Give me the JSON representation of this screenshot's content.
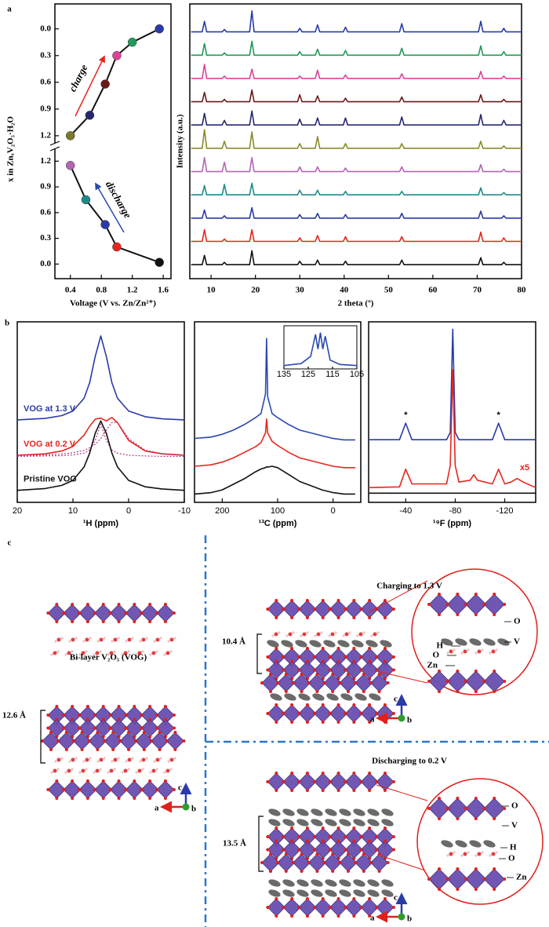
{
  "chart_data": [
    {
      "type": "scatter",
      "panel": "a",
      "xlabel": "Voltage (V vs. Zn/Zn²⁺)",
      "ylabel": "x in ZnₓV₂O₅·H₂O",
      "xlim": [
        0.2,
        1.7
      ],
      "xticks": [
        0.4,
        0.8,
        1.2,
        1.6
      ],
      "segments": [
        {
          "name": "charge",
          "ylim": [
            -0.28,
            1.28
          ],
          "yticks": [
            {
              "value": 0,
              "label": "0.0"
            },
            0.3,
            0.6,
            0.9,
            1.2
          ],
          "x": [
            0.4,
            0.65,
            0.85,
            1.0,
            1.2,
            1.55
          ],
          "values": [
            1.2,
            0.97,
            0.62,
            0.3,
            0.15,
            0.0
          ],
          "colors": [
            "#7a7a2a",
            "#26286e",
            "#6b1a1a",
            "#e0409a",
            "#1f9a5a",
            "#2a3aa8"
          ],
          "arrow_color": "#e8251c"
        },
        {
          "name": "discharge",
          "ylim": [
            1.34,
            -0.17
          ],
          "yticks": [
            1.2,
            0.9,
            0.6,
            0.3,
            {
              "value": 0,
              "label": "0.0"
            }
          ],
          "x": [
            0.4,
            0.6,
            0.85,
            1.0,
            1.55
          ],
          "values": [
            1.15,
            0.75,
            0.46,
            0.2,
            0.02
          ],
          "colors": [
            "#b565b5",
            "#1f8a8a",
            "#2a3aa8",
            "#e8251c",
            "#111111"
          ],
          "arrow_color": "#2a48b0"
        }
      ]
    },
    {
      "type": "line",
      "xlabel": "2 theta (º)",
      "ylabel": "Intensity (a.u.)",
      "xlim": [
        5.2,
        80
      ],
      "xticks": [
        10,
        20,
        30,
        40,
        50,
        60,
        70,
        80
      ],
      "ylim": [
        -0.6,
        11.2
      ],
      "x": [
        5.5,
        8,
        8.5,
        9,
        12.5,
        13,
        13.5,
        18.7,
        19.2,
        19.7,
        29.5,
        30,
        30.5,
        33.5,
        34,
        34.5,
        39.8,
        40.3,
        40.8,
        52.5,
        53,
        53.5,
        70.3,
        70.8,
        71.3,
        75.5,
        76,
        76.5,
        80
      ],
      "series": [
        {
          "color": "#111111",
          "values": [
            0,
            0,
            0.4,
            0,
            0,
            0.1,
            0,
            0,
            0.6,
            0,
            0,
            0.15,
            0,
            0,
            0.2,
            0,
            0,
            0.15,
            0,
            0,
            0.2,
            0,
            0,
            0.3,
            0,
            0,
            0.1,
            0,
            0
          ]
        },
        {
          "color": "#e8251c",
          "values": [
            1,
            1,
            1.5,
            1,
            1,
            1.1,
            1,
            1,
            1.5,
            1,
            1,
            1.15,
            1,
            1,
            1.25,
            1,
            1,
            1.2,
            1,
            1,
            1.2,
            1,
            1,
            1.4,
            1,
            1,
            1.15,
            1,
            1
          ]
        },
        {
          "color": "#2a3aa8",
          "values": [
            2,
            2,
            2.35,
            2,
            2,
            2.1,
            2,
            2,
            2.45,
            2,
            2,
            2.15,
            2,
            2,
            2.2,
            2,
            2,
            2.15,
            2,
            2,
            2.2,
            2,
            2,
            2.3,
            2,
            2,
            2.1,
            2,
            2
          ]
        },
        {
          "color": "#1f8a8a",
          "values": [
            3,
            3,
            3.4,
            3,
            3,
            3.45,
            3,
            3,
            3.5,
            3,
            3,
            3.2,
            3,
            3,
            3.2,
            3,
            3,
            3.15,
            3,
            3,
            3.15,
            3,
            3,
            3.3,
            3,
            3,
            3.1,
            3,
            3
          ]
        },
        {
          "color": "#b565b5",
          "values": [
            4,
            4,
            4.6,
            4,
            4,
            4.4,
            4,
            4,
            4.6,
            4,
            4,
            4.2,
            4,
            4,
            4.2,
            4,
            4,
            4.15,
            4,
            4,
            4.2,
            4,
            4,
            4.3,
            4,
            4,
            4.1,
            4,
            4
          ]
        },
        {
          "color": "#8a8a2a",
          "values": [
            5,
            5,
            5.8,
            5,
            5,
            5.3,
            5,
            5,
            5.7,
            5,
            5,
            5.2,
            5,
            5,
            5.5,
            5,
            5,
            5.2,
            5,
            5,
            5.2,
            5,
            5,
            5.3,
            5,
            5,
            5.1,
            5,
            5
          ]
        },
        {
          "color": "#26286e",
          "values": [
            6,
            6,
            6.5,
            6,
            6,
            6.2,
            6,
            6,
            6.6,
            6,
            6,
            6.25,
            6,
            6,
            6.3,
            6,
            6,
            6.3,
            6,
            6,
            6.35,
            6,
            6,
            6.45,
            6,
            6,
            6.2,
            6,
            6
          ]
        },
        {
          "color": "#6b1a1a",
          "values": [
            7,
            7,
            7.4,
            7,
            7,
            7.1,
            7,
            7,
            7.5,
            7,
            7,
            7.3,
            7,
            7,
            7.25,
            7,
            7,
            7.15,
            7,
            7,
            7.2,
            7,
            7,
            7.3,
            7,
            7,
            7.1,
            7,
            7
          ]
        },
        {
          "color": "#e0409a",
          "values": [
            8,
            8,
            8.6,
            8,
            8,
            8.1,
            8,
            8,
            8.4,
            8,
            8,
            8.1,
            8,
            8,
            8.35,
            8,
            8,
            8.15,
            8,
            8,
            8.2,
            8,
            8,
            8.3,
            8,
            8,
            8.1,
            8,
            8
          ]
        },
        {
          "color": "#1f9a5a",
          "values": [
            9,
            9,
            9.5,
            9,
            9,
            9.1,
            9,
            9,
            9.6,
            9,
            9,
            9.15,
            9,
            9,
            9.25,
            9,
            9,
            9.2,
            9,
            9,
            9.3,
            9,
            9,
            9.4,
            9,
            9,
            9.15,
            9,
            9
          ]
        },
        {
          "color": "#2a3aa8",
          "values": [
            10,
            10,
            10.45,
            10,
            10,
            10.1,
            10,
            10,
            10.9,
            10,
            10,
            10.15,
            10,
            10,
            10.3,
            10,
            10,
            10.2,
            10,
            10,
            10.35,
            10,
            10,
            10.45,
            10,
            10,
            10.15,
            10,
            10
          ]
        }
      ]
    },
    {
      "type": "line",
      "panel": "b",
      "xlabel": "¹H (ppm)",
      "xlim": [
        20,
        -10
      ],
      "xticks": [
        20,
        10,
        0,
        -10
      ],
      "ylim": [
        -0.3,
        4.8
      ],
      "x": [
        20,
        15,
        12,
        10,
        8,
        7,
        6,
        5,
        4,
        3,
        2,
        0,
        -3,
        -6,
        -10
      ],
      "series": [
        {
          "name": "VOG at 1.3 V",
          "color": "#2a3aa8",
          "values": [
            2.03,
            2.07,
            2.15,
            2.28,
            2.64,
            3.08,
            3.82,
            4.4,
            3.82,
            3.08,
            2.64,
            2.28,
            2.12,
            2.06,
            2.03
          ]
        },
        {
          "name": "VOG at 0.2 V",
          "color": "#e8251c",
          "values": [
            1.03,
            1.07,
            1.15,
            1.28,
            1.6,
            1.85,
            2.05,
            2.08,
            2.0,
            2.1,
            1.95,
            1.45,
            1.15,
            1.07,
            1.03
          ]
        },
        {
          "color": "#b03a8a",
          "dotted": true,
          "values": [
            1.0,
            1.01,
            1.02,
            1.04,
            1.09,
            1.18,
            1.45,
            1.9,
            1.45,
            1.18,
            1.09,
            1.03,
            1.01,
            1.0,
            1.0
          ]
        },
        {
          "color": "#b03a8a",
          "dotted": true,
          "values": [
            1.02,
            1.04,
            1.065,
            1.1,
            1.17,
            1.24,
            1.34,
            1.5,
            1.74,
            1.96,
            1.96,
            1.5,
            1.17,
            1.08,
            1.04
          ]
        },
        {
          "name": "Pristine VOG",
          "color": "#111111",
          "values": [
            0.04,
            0.09,
            0.18,
            0.32,
            0.7,
            1.09,
            1.65,
            2.0,
            1.65,
            1.09,
            0.7,
            0.32,
            0.14,
            0.08,
            0.04
          ]
        }
      ]
    },
    {
      "type": "line",
      "xlabel": "¹³C (ppm)",
      "xlim": [
        250,
        -50
      ],
      "xticks": [
        200,
        100,
        0
      ],
      "ylim": [
        -0.3,
        6.2
      ],
      "x": [
        250,
        220,
        200,
        180,
        160,
        140,
        130,
        122,
        120,
        118,
        110,
        100,
        80,
        60,
        40,
        20,
        0,
        -20,
        -40
      ],
      "series": [
        {
          "color": "#2a48b0",
          "values": [
            2.0,
            2.05,
            2.15,
            2.3,
            2.5,
            2.75,
            2.9,
            3.6,
            5.6,
            3.5,
            2.9,
            2.75,
            2.5,
            2.3,
            2.2,
            2.1,
            2.0,
            1.95,
            1.95
          ]
        },
        {
          "color": "#e8251c",
          "values": [
            1.0,
            1.05,
            1.15,
            1.3,
            1.5,
            1.7,
            1.85,
            2.2,
            2.7,
            2.2,
            1.9,
            1.75,
            1.5,
            1.3,
            1.2,
            1.1,
            1.0,
            0.95,
            0.95
          ]
        },
        {
          "color": "#111111",
          "values": [
            0.0,
            0.05,
            0.15,
            0.35,
            0.55,
            0.8,
            0.9,
            0.95,
            0.98,
            0.97,
            1.0,
            0.95,
            0.7,
            0.45,
            0.3,
            0.15,
            0.05,
            0.0,
            0.0
          ]
        }
      ],
      "inset": {
        "type": "line",
        "xlim": [
          135,
          105
        ],
        "xticks": [
          135,
          125,
          115,
          105
        ],
        "ylim": [
          0,
          1.05
        ],
        "color": "#2a48b0",
        "x": [
          135,
          128,
          124,
          122,
          121,
          120,
          119,
          118,
          116,
          112,
          105
        ],
        "values": [
          0.05,
          0.1,
          0.3,
          0.9,
          0.5,
          0.95,
          0.5,
          0.85,
          0.2,
          0.08,
          0.05
        ]
      }
    },
    {
      "type": "line",
      "xlabel": "¹⁹F (ppm)",
      "xlim": [
        -10,
        -145
      ],
      "xticks": [
        -40,
        -80,
        -120
      ],
      "ylim": [
        -0.2,
        4.7
      ],
      "x": [
        -10,
        -35,
        -40,
        -45,
        -73,
        -76,
        -78,
        -80,
        -83,
        -92,
        -95,
        -98,
        -110,
        -115,
        -120,
        -125,
        -130,
        -135,
        -145
      ],
      "series": [
        {
          "color": "#2a3aa8",
          "values": [
            1.5,
            1.5,
            1.95,
            1.5,
            1.5,
            1.7,
            4.5,
            1.7,
            1.5,
            1.5,
            1.5,
            1.5,
            1.5,
            1.95,
            1.5,
            1.5,
            1.5,
            1.5,
            1.5
          ]
        },
        {
          "color": "#e8251c",
          "values": [
            0.2,
            0.22,
            0.7,
            0.3,
            0.3,
            0.8,
            3.4,
            0.8,
            0.35,
            0.4,
            0.55,
            0.4,
            0.3,
            0.7,
            0.3,
            0.35,
            0.45,
            0.35,
            0.2
          ]
        },
        {
          "color": "#111111",
          "values": [
            0.05,
            0.05,
            0.05,
            0.05,
            0.05,
            0.05,
            0.05,
            0.05,
            0.05,
            0.05,
            0.05,
            0.05,
            0.05,
            0.05,
            0.05,
            0.05,
            0.05,
            0.05,
            0.05
          ]
        }
      ],
      "annotations": [
        {
          "text": "*",
          "x": -40,
          "y": 1.95
        },
        {
          "text": "*",
          "x": -115,
          "y": 1.95
        }
      ],
      "scale_label": "x5"
    }
  ],
  "panel_c": {
    "label": "c",
    "left": {
      "title": "Bi-layer V₂O₅ (VOG)",
      "spacing": "12.6 Å",
      "axes": [
        "a",
        "b",
        "c"
      ]
    },
    "charging": {
      "title": "Charging to 1.3 V",
      "spacing": "10.4 Å",
      "atoms": [
        "O",
        "V",
        "H",
        "O",
        "Zn"
      ],
      "axes": [
        "a",
        "b",
        "c"
      ]
    },
    "discharging": {
      "title": "Discharging to 0.2 V",
      "spacing": "13.5 Å",
      "atoms": [
        "O",
        "V",
        "H",
        "O",
        "Zn"
      ],
      "axes": [
        "a",
        "b",
        "c"
      ]
    }
  }
}
